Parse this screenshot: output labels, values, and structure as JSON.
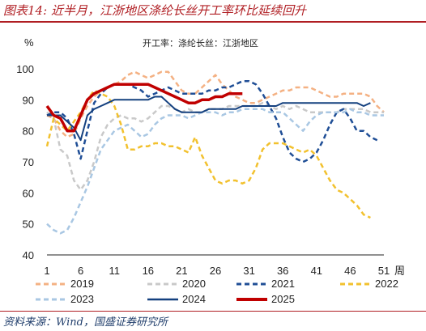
{
  "figure": {
    "label": "图表14:",
    "heading": "近半月，江浙地区涤纶长丝开工率环比延续回升"
  },
  "source": {
    "prefix": "资料来源：",
    "name": "Wind",
    "suffix": "，国盛证券研究所"
  },
  "chart_data": {
    "type": "line",
    "title": "开工率：涤纶长丝：江浙地区",
    "ylabel": "%",
    "xlabel": "周",
    "ylim": [
      40,
      100
    ],
    "yticks": [
      40,
      50,
      60,
      70,
      80,
      90,
      100
    ],
    "xlim": [
      1,
      51
    ],
    "xticks": [
      1,
      6,
      11,
      16,
      21,
      26,
      31,
      36,
      41,
      46,
      51
    ],
    "legend_position": "bottom",
    "series": [
      {
        "name": "2019",
        "color": "#f4b183",
        "dash": "6,4",
        "width": 2.5,
        "x": [
          1,
          2,
          3,
          4,
          5,
          6,
          7,
          8,
          9,
          10,
          11,
          12,
          13,
          14,
          15,
          16,
          17,
          18,
          19,
          20,
          21,
          22,
          23,
          24,
          25,
          26,
          27,
          28,
          29,
          30,
          31,
          32,
          33,
          34,
          35,
          36,
          37,
          38,
          39,
          40,
          41,
          42,
          43,
          44,
          45,
          46,
          47,
          48,
          49,
          50,
          51
        ],
        "y": [
          85,
          84,
          80,
          78,
          79,
          84,
          88,
          91,
          93,
          94,
          95,
          96,
          98,
          99,
          98,
          97,
          98,
          99,
          99,
          96,
          93,
          92,
          92,
          94,
          96,
          98,
          95,
          93,
          91,
          90,
          89,
          89,
          90,
          91,
          92,
          93,
          93,
          94,
          94,
          94,
          93,
          92,
          91,
          91,
          92,
          92,
          92,
          92,
          91,
          88,
          86
        ]
      },
      {
        "name": "2020",
        "color": "#c9c9c9",
        "dash": "6,4",
        "width": 2.5,
        "x": [
          1,
          2,
          3,
          4,
          5,
          6,
          7,
          8,
          9,
          10,
          11,
          12,
          13,
          14,
          15,
          16,
          17,
          18,
          19,
          20,
          21,
          22,
          23,
          24,
          25,
          26,
          27,
          28,
          29,
          30,
          31,
          32,
          33,
          34,
          35,
          36,
          37,
          38,
          39,
          40,
          41,
          42,
          43,
          44,
          45,
          46,
          47,
          48,
          49,
          50,
          51
        ],
        "y": [
          86,
          84,
          74,
          72,
          64,
          61,
          64,
          70,
          78,
          82,
          84,
          85,
          84,
          84,
          83,
          84,
          86,
          88,
          88,
          87,
          86,
          87,
          86,
          86,
          87,
          87,
          87,
          88,
          88,
          88,
          88,
          88,
          89,
          88,
          87,
          88,
          87,
          88,
          87,
          86,
          86,
          86,
          86,
          86,
          87,
          87,
          87,
          87,
          86,
          86,
          86
        ]
      },
      {
        "name": "2021",
        "color": "#1f4e96",
        "dash": "6,4",
        "width": 2.5,
        "x": [
          1,
          2,
          3,
          4,
          5,
          6,
          7,
          8,
          9,
          10,
          11,
          12,
          13,
          14,
          15,
          16,
          17,
          18,
          19,
          20,
          21,
          22,
          23,
          24,
          25,
          26,
          27,
          28,
          29,
          30,
          31,
          32,
          33,
          34,
          35,
          36,
          37,
          38,
          39,
          40,
          41,
          42,
          43,
          44,
          45,
          46,
          47,
          48,
          49,
          50
        ],
        "y": [
          85,
          86,
          86,
          84,
          79,
          71,
          80,
          89,
          92,
          94,
          95,
          95,
          95,
          94,
          93,
          91,
          92,
          93,
          94,
          93,
          92,
          92,
          92,
          92,
          93,
          93,
          94,
          94,
          95,
          96,
          96,
          95,
          92,
          88,
          84,
          78,
          73,
          71,
          70,
          71,
          73,
          77,
          82,
          86,
          87,
          84,
          80,
          80,
          78,
          77
        ]
      },
      {
        "name": "2022",
        "color": "#f2c12e",
        "dash": "6,4",
        "width": 2.5,
        "x": [
          1,
          2,
          3,
          4,
          5,
          6,
          7,
          8,
          9,
          10,
          11,
          12,
          13,
          14,
          15,
          16,
          17,
          18,
          19,
          20,
          21,
          22,
          23,
          24,
          25,
          26,
          27,
          28,
          29,
          30,
          31,
          32,
          33,
          34,
          35,
          36,
          37,
          38,
          39,
          40,
          41,
          42,
          43,
          44,
          45,
          46,
          47,
          48,
          49
        ],
        "y": [
          75,
          84,
          82,
          80,
          83,
          86,
          90,
          93,
          92,
          91,
          88,
          82,
          74,
          74,
          75,
          75,
          76,
          76,
          75,
          75,
          74,
          73,
          78,
          72,
          68,
          64,
          63,
          64,
          64,
          63,
          64,
          68,
          74,
          76,
          76,
          76,
          75,
          74,
          73,
          74,
          72,
          68,
          64,
          61,
          60,
          58,
          56,
          53,
          52
        ]
      },
      {
        "name": "2023",
        "color": "#a9c7e3",
        "dash": "6,4",
        "width": 2.5,
        "x": [
          1,
          2,
          3,
          4,
          5,
          6,
          7,
          8,
          9,
          10,
          11,
          12,
          13,
          14,
          15,
          16,
          17,
          18,
          19,
          20,
          21,
          22,
          23,
          24,
          25,
          26,
          27,
          28,
          29,
          30,
          31,
          32,
          33,
          34,
          35,
          36,
          37,
          38,
          39,
          40,
          41,
          42,
          43,
          44,
          45,
          46,
          47,
          48,
          49,
          50,
          51
        ],
        "y": [
          50,
          48,
          47,
          48,
          52,
          57,
          62,
          68,
          74,
          77,
          80,
          81,
          82,
          80,
          78,
          79,
          82,
          84,
          85,
          85,
          85,
          84,
          85,
          86,
          86,
          86,
          85,
          86,
          86,
          87,
          87,
          87,
          87,
          86,
          86,
          86,
          84,
          82,
          80,
          83,
          85,
          86,
          86,
          86,
          86,
          87,
          86,
          86,
          85,
          85,
          85
        ]
      },
      {
        "name": "2024",
        "color": "#14407f",
        "dash": "",
        "width": 2,
        "x": [
          1,
          2,
          3,
          4,
          5,
          6,
          7,
          8,
          9,
          10,
          11,
          12,
          13,
          14,
          15,
          16,
          17,
          18,
          19,
          20,
          21,
          22,
          23,
          24,
          25,
          26,
          27,
          28,
          29,
          30,
          31,
          32,
          33,
          34,
          35,
          36,
          37,
          38,
          39,
          40,
          41,
          42,
          43,
          44,
          45,
          46,
          47,
          48,
          49
        ],
        "y": [
          85,
          85,
          85,
          83,
          81,
          77,
          85,
          87,
          88,
          89,
          90,
          90,
          90,
          90,
          90,
          90,
          91,
          91,
          89,
          87,
          86,
          86,
          86,
          86,
          87,
          87,
          87,
          87,
          87,
          88,
          88,
          88,
          88,
          88,
          88,
          89,
          89,
          89,
          89,
          89,
          89,
          89,
          89,
          89,
          89,
          89,
          89,
          88,
          89
        ]
      },
      {
        "name": "2025",
        "color": "#c00000",
        "dash": "",
        "width": 3.5,
        "x": [
          1,
          2,
          3,
          4,
          5,
          6,
          7,
          8,
          9,
          10,
          11,
          12,
          13,
          14,
          15,
          16,
          17,
          18,
          19,
          20,
          21,
          22,
          23,
          24,
          25,
          26,
          27,
          28,
          29,
          30
        ],
        "y": [
          88,
          85,
          84,
          80,
          80,
          85,
          90,
          92,
          93,
          94,
          95,
          95,
          95,
          95,
          95,
          95,
          94,
          93,
          92,
          91,
          90,
          89,
          89,
          90,
          90,
          91,
          91,
          92,
          92,
          92
        ]
      }
    ]
  }
}
